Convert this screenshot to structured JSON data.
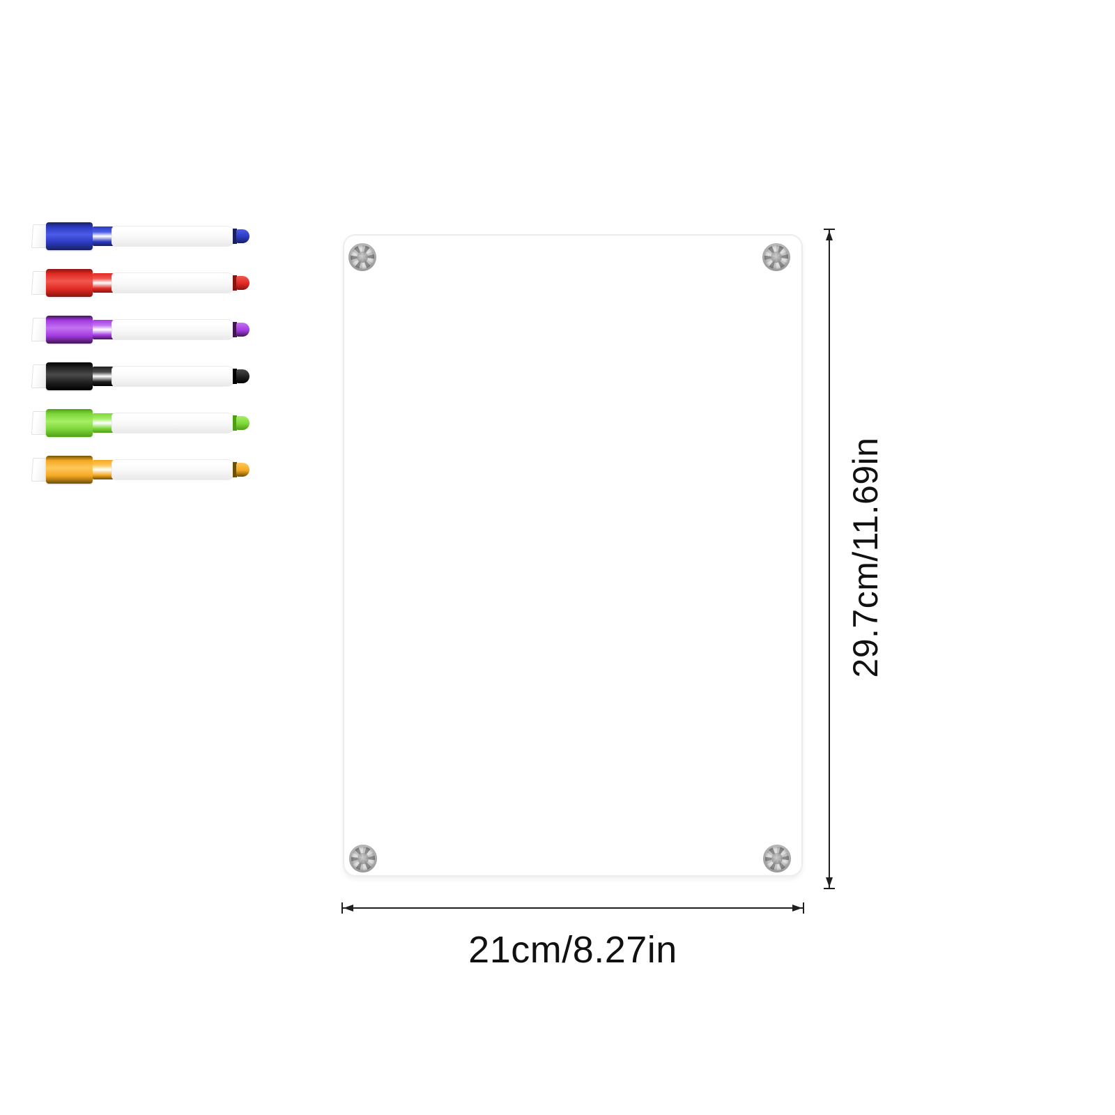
{
  "page": {
    "background": "#ffffff"
  },
  "board": {
    "fill": "#ffffff",
    "edge_color": "#ededed",
    "screw_count": 4,
    "screw_color": "#b9b9b9"
  },
  "dimensions": {
    "height_label": "29.7cm/11.69in",
    "width_label": "21cm/8.27in",
    "line_color": "#1f1f1f",
    "text_color": "#111111"
  },
  "markers": [
    {
      "name": "blue",
      "cap": "#2b3ac0",
      "cap_dark": "#18215f",
      "cap_light": "#4d5ce8"
    },
    {
      "name": "red",
      "cap": "#df2a23",
      "cap_dark": "#8c1410",
      "cap_light": "#f2564f"
    },
    {
      "name": "purple",
      "cap": "#a43ae2",
      "cap_dark": "#411552",
      "cap_light": "#c273f0"
    },
    {
      "name": "black",
      "cap": "#202020",
      "cap_dark": "#000000",
      "cap_light": "#4a4a4a"
    },
    {
      "name": "green",
      "cap": "#7ed63a",
      "cap_dark": "#4f9f16",
      "cap_light": "#a5ef66"
    },
    {
      "name": "orange",
      "cap": "#f4a823",
      "cap_dark": "#6e5005",
      "cap_light": "#ffc85a"
    }
  ]
}
